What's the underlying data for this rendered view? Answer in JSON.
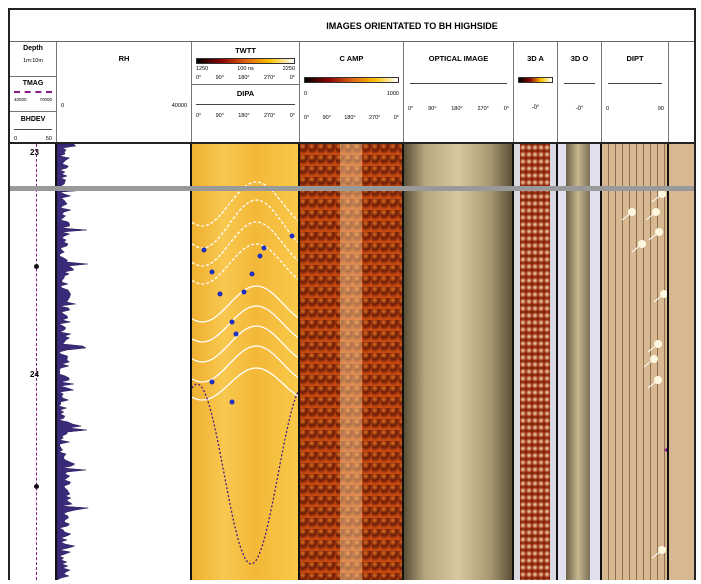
{
  "title": "IMAGES ORIENTATED TO BH HIGHSIDE",
  "depth": {
    "label": "Depth",
    "scale": "1m:10m",
    "marks": [
      "23",
      "24"
    ]
  },
  "tmag": {
    "label": "TMAG",
    "min": "40000",
    "max": "70000",
    "color": "#8b1a8b"
  },
  "bhdev": {
    "label": "BHDEV",
    "min": "0",
    "max": "50"
  },
  "rh": {
    "label": "RH",
    "min": "0",
    "max": "40000",
    "color": "#3a2a7a"
  },
  "twtt": {
    "label": "TWTT",
    "min": "1250",
    "unit": "100 ns",
    "max": "2250",
    "azimuths": [
      "0°",
      "90°",
      "180°",
      "270°",
      "0°"
    ]
  },
  "dipa": {
    "label": "DIPA",
    "azimuths": [
      "0°",
      "90°",
      "180°",
      "270°",
      "0°"
    ]
  },
  "camp": {
    "label": "C AMP",
    "min": "0",
    "max": "1000",
    "azimuths": [
      "0°",
      "90°",
      "180°",
      "270°",
      "0°"
    ]
  },
  "optical": {
    "label": "OPTICAL IMAGE",
    "azimuths": [
      "0°",
      "90°",
      "180°",
      "270°",
      "0°"
    ]
  },
  "a3d": {
    "label": "3D A",
    "value": "-0°"
  },
  "o3d": {
    "label": "3D O",
    "value": "-0°"
  },
  "dipt": {
    "label": "DIPT",
    "min": "0",
    "max": "90"
  }
}
